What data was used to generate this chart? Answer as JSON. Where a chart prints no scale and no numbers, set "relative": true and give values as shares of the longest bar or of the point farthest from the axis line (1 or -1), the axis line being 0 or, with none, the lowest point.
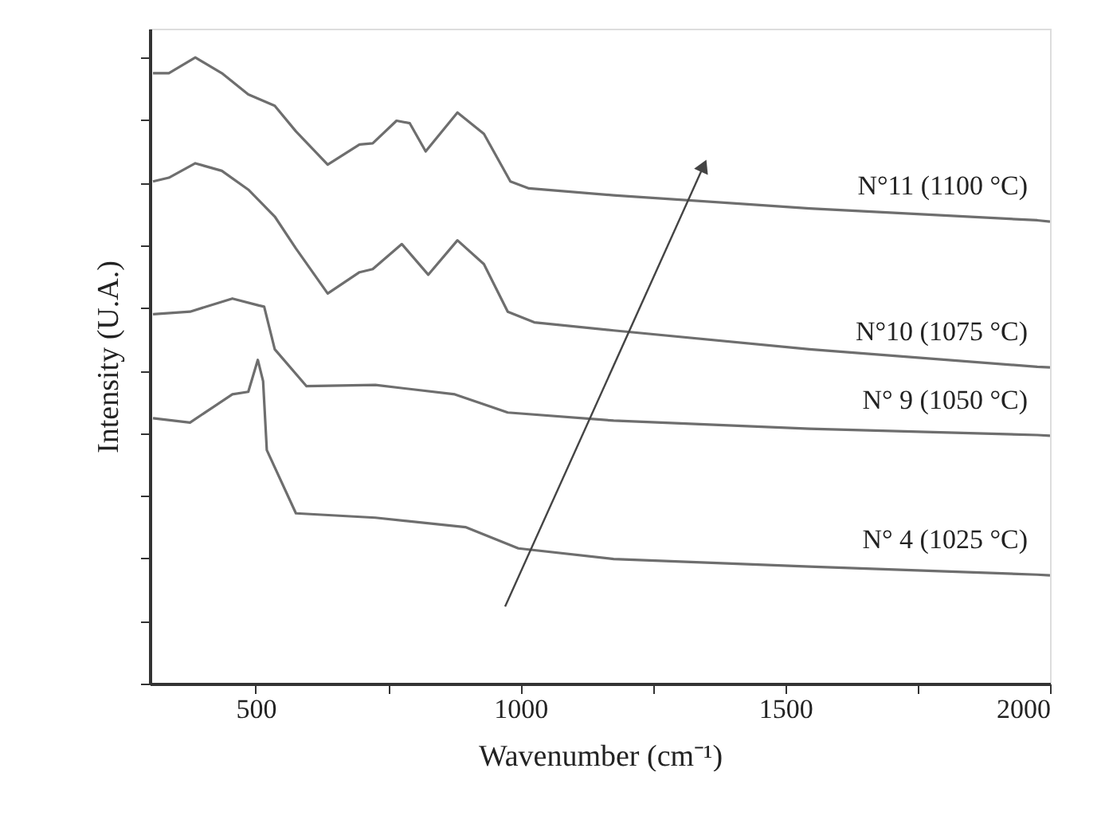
{
  "chart_data": {
    "type": "line",
    "xlabel": "Wavenumber (cm⁻¹)",
    "ylabel": "Intensity (U.A.)",
    "relative": true,
    "grid": false,
    "marker": "none",
    "line_style": "solid",
    "xlim": [
      300,
      2000
    ],
    "xticks": [
      {
        "value": 500,
        "label": "500"
      },
      {
        "value": 750,
        "label": null
      },
      {
        "value": 1000,
        "label": "1000"
      },
      {
        "value": 1250,
        "label": null
      },
      {
        "value": 1500,
        "label": "1500"
      },
      {
        "value": 1750,
        "label": null
      },
      {
        "value": 2000,
        "label": "2000"
      }
    ],
    "series": [
      {
        "name": "N°11 (1100 °C)",
        "color": "#6e6e6e",
        "x": [
          306,
          336,
          386,
          436,
          486,
          536,
          576,
          636,
          696,
          721,
          766,
          791,
          821,
          881,
          931,
          981,
          1016,
          1176,
          1546,
          1976,
          2000
        ],
        "values": [
          0.975,
          0.975,
          1.0,
          0.975,
          0.941,
          0.923,
          0.882,
          0.829,
          0.861,
          0.863,
          0.899,
          0.895,
          0.85,
          0.912,
          0.878,
          0.802,
          0.791,
          0.78,
          0.759,
          0.74,
          0.738
        ]
      },
      {
        "name": "N°10 (1075 °C)",
        "color": "#6e6e6e",
        "x": [
          306,
          336,
          386,
          436,
          486,
          536,
          576,
          636,
          696,
          721,
          776,
          826,
          881,
          931,
          976,
          1026,
          1176,
          1546,
          1976,
          2000
        ],
        "values": [
          0.802,
          0.808,
          0.831,
          0.819,
          0.789,
          0.746,
          0.695,
          0.623,
          0.657,
          0.662,
          0.702,
          0.653,
          0.708,
          0.67,
          0.594,
          0.577,
          0.564,
          0.534,
          0.506,
          0.505
        ]
      },
      {
        "name": "N° 9 (1050 °C)",
        "color": "#6e6e6e",
        "x": [
          306,
          376,
          456,
          506,
          516,
          536,
          596,
          726,
          876,
          976,
          1176,
          1546,
          1976,
          2000
        ],
        "values": [
          0.59,
          0.594,
          0.615,
          0.604,
          0.602,
          0.534,
          0.475,
          0.477,
          0.462,
          0.433,
          0.42,
          0.407,
          0.397,
          0.396
        ]
      },
      {
        "name": "N° 4 (1025 °C)",
        "color": "#6e6e6e",
        "x": [
          306,
          376,
          456,
          486,
          504,
          514,
          521,
          576,
          726,
          896,
          996,
          1176,
          1546,
          1976,
          2000
        ],
        "values": [
          0.424,
          0.417,
          0.462,
          0.466,
          0.517,
          0.483,
          0.373,
          0.272,
          0.265,
          0.25,
          0.216,
          0.199,
          0.187,
          0.174,
          0.173
        ]
      },
      {
        "type": "line",
        "marker": "triangle",
        "color": "#444444",
        "x": [
          971,
          1346
        ],
        "values": [
          0.123,
          0.827
        ]
      }
    ]
  }
}
